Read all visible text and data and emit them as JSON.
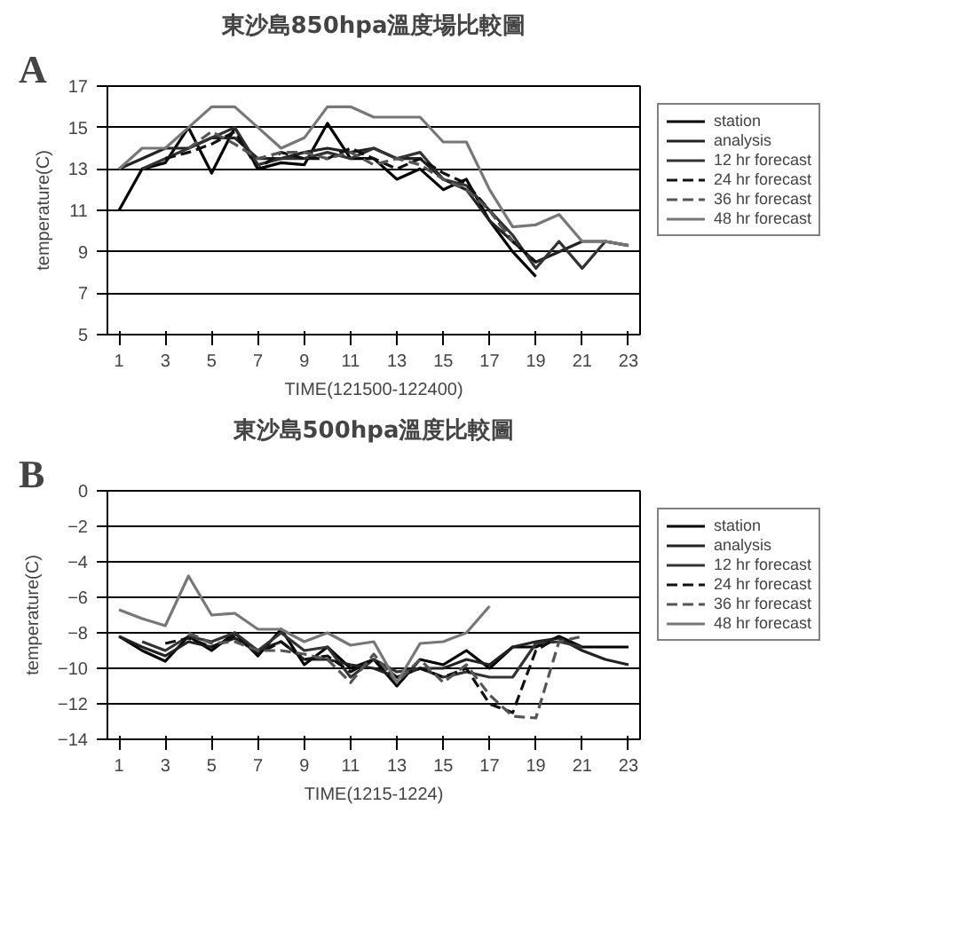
{
  "chart_data": [
    {
      "type": "line",
      "title": "東沙島850hpa溫度場比較圖",
      "xlabel": "TIME(121500-122400)",
      "ylabel": "temperature(C)",
      "annotations": [
        "A"
      ],
      "x": [
        1,
        2,
        3,
        4,
        5,
        6,
        7,
        8,
        9,
        10,
        11,
        12,
        13,
        14,
        15,
        16,
        17,
        18,
        19,
        20,
        21,
        22,
        23
      ],
      "xlim": [
        0.5,
        23.5
      ],
      "xticks": [
        1,
        3,
        5,
        7,
        9,
        11,
        13,
        15,
        17,
        19,
        21,
        23
      ],
      "ylim": [
        5,
        17
      ],
      "yticks": [
        5,
        7,
        9,
        11,
        13,
        15,
        17
      ],
      "grid": "y",
      "legend": "right",
      "series": [
        {
          "name": "station",
          "color": "#000000",
          "line_style": "solid",
          "values": [
            11,
            13,
            13.3,
            15,
            12.8,
            15,
            13,
            13.3,
            13.2,
            15.2,
            13.5,
            13.5,
            12.5,
            13,
            12,
            12.5,
            10.5,
            9,
            7.8,
            null,
            null,
            null,
            null
          ]
        },
        {
          "name": "analysis",
          "color": "#222222",
          "line_style": "solid",
          "values": [
            13,
            13.5,
            14,
            14,
            14.5,
            14.5,
            13.5,
            13.5,
            13.8,
            14,
            13.8,
            14,
            13.5,
            13.5,
            12.5,
            12,
            10.5,
            9.5,
            8.5,
            9,
            9.5,
            9.5,
            9.3
          ]
        },
        {
          "name": "12 hr forecast",
          "color": "#333333",
          "line_style": "solid",
          "values": [
            null,
            13,
            13.5,
            14,
            14.5,
            15,
            13.2,
            13.5,
            13.5,
            13.8,
            13.5,
            14,
            13.5,
            13.8,
            12.5,
            12.2,
            11,
            9.8,
            8.2,
            9.5,
            8.2,
            9.5,
            9.3
          ]
        },
        {
          "name": "24 hr forecast",
          "color": "#111111",
          "line_style": "dashed",
          "values": [
            null,
            null,
            13.5,
            13.8,
            14.2,
            14.8,
            13,
            13.8,
            13.5,
            13.5,
            14,
            13.5,
            13,
            13.5,
            12.8,
            12.3,
            11,
            9.5,
            8.5,
            null,
            null,
            null,
            null
          ]
        },
        {
          "name": "36 hr forecast",
          "color": "#555555",
          "line_style": "dashed",
          "values": [
            null,
            null,
            null,
            14,
            14.8,
            14.2,
            13.5,
            13.8,
            13.8,
            13.5,
            13.8,
            13.2,
            13.5,
            13.2,
            12.5,
            12,
            11,
            9.5,
            null,
            null,
            null,
            null,
            null
          ]
        },
        {
          "name": "48 hr forecast",
          "color": "#777777",
          "line_style": "solid",
          "values": [
            13,
            14,
            14,
            15,
            16,
            16,
            15,
            14,
            14.5,
            16,
            16,
            15.5,
            15.5,
            15.5,
            14.3,
            14.3,
            12,
            10.2,
            10.3,
            10.8,
            9.5,
            9.5,
            9.3
          ]
        }
      ]
    },
    {
      "type": "line",
      "title": "東沙島500hpa溫度比較圖",
      "xlabel": "TIME(1215-1224)",
      "ylabel": "temperature(C)",
      "annotations": [
        "B"
      ],
      "x": [
        1,
        2,
        3,
        4,
        5,
        6,
        7,
        8,
        9,
        10,
        11,
        12,
        13,
        14,
        15,
        16,
        17,
        18,
        19,
        20,
        21,
        22,
        23
      ],
      "xlim": [
        0.5,
        23.5
      ],
      "xticks": [
        1,
        3,
        5,
        7,
        9,
        11,
        13,
        15,
        17,
        19,
        21,
        23
      ],
      "ylim": [
        -14,
        0
      ],
      "yticks": [
        -14,
        -12,
        -10,
        -8,
        -6,
        -4,
        -2,
        0
      ],
      "grid": "y",
      "legend": "right",
      "series": [
        {
          "name": "station",
          "color": "#000000",
          "line_style": "solid",
          "values": [
            -8.2,
            -9,
            -9.6,
            -8.2,
            -9,
            -8,
            -9.3,
            -7.8,
            -9.8,
            -8.8,
            -10,
            -9.5,
            -11,
            -9.5,
            -9.8,
            -9,
            -10,
            -8.8,
            -8.8,
            -8.2,
            -8.8,
            -8.8,
            -8.8
          ]
        },
        {
          "name": "analysis",
          "color": "#222222",
          "line_style": "solid",
          "values": [
            -8.2,
            -8.8,
            -9.3,
            -8.5,
            -8.8,
            -8.3,
            -9,
            -8.5,
            -9.5,
            -9.5,
            -9.8,
            -10,
            -10.5,
            -10,
            -10,
            -9.5,
            -9.8,
            -8.8,
            -8.5,
            -8.3,
            -9,
            -9.5,
            -9.8
          ]
        },
        {
          "name": "12 hr forecast",
          "color": "#333333",
          "line_style": "solid",
          "values": [
            null,
            -8.5,
            -9,
            -8.2,
            -8.5,
            -8,
            -9,
            -8,
            -9,
            -8.8,
            -10.5,
            -9.5,
            -10.2,
            -10,
            -10.5,
            -10.2,
            -10.5,
            -10.5,
            -8.6,
            -8.5,
            -8.8,
            null,
            null
          ]
        },
        {
          "name": "24 hr forecast",
          "color": "#111111",
          "line_style": "dashed",
          "values": [
            null,
            null,
            -8.6,
            -8.3,
            -8.8,
            -8.2,
            -9.2,
            -8.5,
            -9.5,
            -9.3,
            -10.2,
            -9.5,
            -10.5,
            -10,
            -10.5,
            -10,
            -12,
            -12.5,
            -9,
            -8.2,
            null,
            null,
            null
          ]
        },
        {
          "name": "36 hr forecast",
          "color": "#555555",
          "line_style": "dashed",
          "values": [
            null,
            null,
            null,
            -8,
            -8.6,
            -8.5,
            -9,
            -9,
            -9.2,
            -9.5,
            -10.8,
            -9.2,
            -10.8,
            -9.5,
            -10.8,
            -9.8,
            -11.5,
            -12.7,
            -12.8,
            -8.5,
            -8.2,
            null,
            null
          ]
        },
        {
          "name": "48 hr forecast",
          "color": "#777777",
          "line_style": "solid",
          "values": [
            -6.7,
            -7.2,
            -7.6,
            -4.8,
            -7,
            -6.9,
            -7.8,
            -7.8,
            -8.5,
            -8,
            -8.7,
            -8.5,
            -10.8,
            -8.6,
            -8.5,
            -8,
            -6.5,
            null,
            null,
            null,
            null,
            null,
            null
          ]
        }
      ]
    }
  ]
}
